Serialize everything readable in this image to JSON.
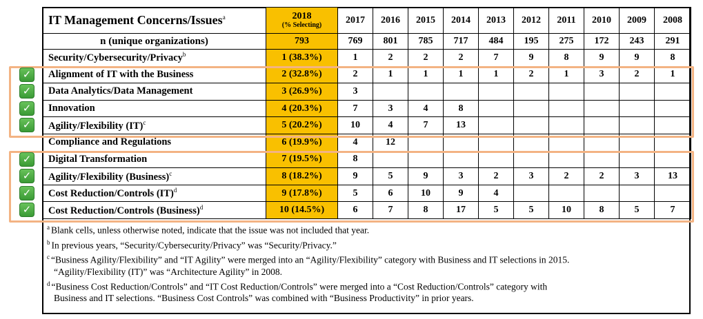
{
  "header": {
    "title": "IT Management Concerns/Issues",
    "title_note": "a",
    "year_2018": "2018",
    "year_2018_sub": "(% Selecting)",
    "years": [
      "2017",
      "2016",
      "2015",
      "2014",
      "2013",
      "2012",
      "2011",
      "2010",
      "2009",
      "2008"
    ]
  },
  "n_row": {
    "label": "n (unique organizations)",
    "value_2018": "793",
    "values": [
      "769",
      "801",
      "785",
      "717",
      "484",
      "195",
      "275",
      "172",
      "243",
      "291"
    ]
  },
  "rows": [
    {
      "label": "Security/Cybersecurity/Privacy",
      "note": "b",
      "v2018": "1 (38.3%)",
      "values": [
        "1",
        "2",
        "2",
        "2",
        "7",
        "9",
        "8",
        "9",
        "9",
        "8"
      ],
      "checked": false
    },
    {
      "label": "Alignment of IT with the Business",
      "note": "",
      "v2018": "2 (32.8%)",
      "values": [
        "2",
        "1",
        "1",
        "1",
        "1",
        "2",
        "1",
        "3",
        "2",
        "1"
      ],
      "checked": true
    },
    {
      "label": "Data Analytics/Data Management",
      "note": "",
      "v2018": "3 (26.9%)",
      "values": [
        "3",
        "",
        "",
        "",
        "",
        "",
        "",
        "",
        "",
        ""
      ],
      "checked": true
    },
    {
      "label": "Innovation",
      "note": "",
      "v2018": "4 (20.3%)",
      "values": [
        "7",
        "3",
        "4",
        "8",
        "",
        "",
        "",
        "",
        "",
        ""
      ],
      "checked": true
    },
    {
      "label": "Agility/Flexibility (IT)",
      "note": "c",
      "v2018": "5 (20.2%)",
      "values": [
        "10",
        "4",
        "7",
        "13",
        "",
        "",
        "",
        "",
        "",
        ""
      ],
      "checked": true
    },
    {
      "label": "Compliance and Regulations",
      "note": "",
      "v2018": "6 (19.9%)",
      "values": [
        "4",
        "12",
        "",
        "",
        "",
        "",
        "",
        "",
        "",
        ""
      ],
      "checked": false
    },
    {
      "label": "Digital Transformation",
      "note": "",
      "v2018": "7 (19.5%)",
      "values": [
        "8",
        "",
        "",
        "",
        "",
        "",
        "",
        "",
        "",
        ""
      ],
      "checked": true
    },
    {
      "label": "Agility/Flexibility (Business)",
      "note": "c",
      "v2018": "8 (18.2%)",
      "values": [
        "9",
        "5",
        "9",
        "3",
        "2",
        "3",
        "2",
        "2",
        "3",
        "13"
      ],
      "checked": true
    },
    {
      "label": "Cost Reduction/Controls (IT)",
      "note": "d",
      "v2018": "9 (17.8%)",
      "values": [
        "5",
        "6",
        "10",
        "9",
        "4",
        "",
        "",
        "",
        "",
        ""
      ],
      "checked": true
    },
    {
      "label": "Cost Reduction/Controls (Business)",
      "note": "d",
      "v2018": "10 (14.5%)",
      "values": [
        "6",
        "7",
        "8",
        "17",
        "5",
        "5",
        "10",
        "8",
        "5",
        "7"
      ],
      "checked": true
    }
  ],
  "check_glyph": "✓",
  "notes": [
    {
      "mark": "a",
      "text": "Blank cells, unless otherwise noted, indicate that the issue was not included that year.",
      "cont": ""
    },
    {
      "mark": "b",
      "text": "In previous years, “Security/Cybersecurity/Privacy” was “Security/Privacy.”",
      "cont": ""
    },
    {
      "mark": "c",
      "text": "“Business Agility/Flexibility” and “IT Agility” were merged into an “Agility/Flexibility” category with Business and IT selections in 2015.",
      "cont": "“Agility/Flexibility (IT)” was “Architecture Agility” in 2008."
    },
    {
      "mark": "d",
      "text": "“Business Cost Reduction/Controls” and “IT Cost Reduction/Controls” were merged into a “Cost Reduction/Controls” category with",
      "cont": "Business and IT selections. “Business Cost Controls” was combined with “Business Productivity” in prior years."
    }
  ],
  "colors": {
    "highlight_2018": "#f9c000",
    "box_outline": "#f3b383",
    "check_green": "#3a9a35"
  }
}
